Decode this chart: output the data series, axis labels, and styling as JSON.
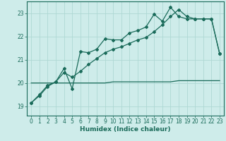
{
  "background_color": "#ceecea",
  "grid_color": "#aed8d4",
  "line_color": "#1a6b5a",
  "xlabel": "Humidex (Indice chaleur)",
  "xlim": [
    -0.5,
    23.5
  ],
  "ylim": [
    18.6,
    23.5
  ],
  "yticks": [
    19,
    20,
    21,
    22,
    23
  ],
  "xticks": [
    0,
    1,
    2,
    3,
    4,
    5,
    6,
    7,
    8,
    9,
    10,
    11,
    12,
    13,
    14,
    15,
    16,
    17,
    18,
    19,
    20,
    21,
    22,
    23
  ],
  "line1_x": [
    0,
    1,
    2,
    3,
    4,
    5,
    6,
    7,
    8,
    9,
    10,
    11,
    12,
    13,
    14,
    15,
    16,
    17,
    18,
    19,
    20,
    21,
    22,
    23
  ],
  "line1_y": [
    19.15,
    19.5,
    19.9,
    20.05,
    20.62,
    19.75,
    21.35,
    21.3,
    21.45,
    21.9,
    21.85,
    21.85,
    22.15,
    22.25,
    22.4,
    22.95,
    22.65,
    23.25,
    22.85,
    22.75,
    22.75,
    22.75,
    22.75,
    21.25
  ],
  "line2_x": [
    0,
    1,
    2,
    3,
    4,
    5,
    6,
    7,
    8,
    9,
    10,
    11,
    12,
    13,
    14,
    15,
    16,
    17,
    18,
    19,
    20,
    21,
    22,
    23
  ],
  "line2_y": [
    19.15,
    19.45,
    19.85,
    20.05,
    20.45,
    20.25,
    20.5,
    20.8,
    21.05,
    21.3,
    21.45,
    21.55,
    21.7,
    21.85,
    21.95,
    22.2,
    22.5,
    22.85,
    23.15,
    22.85,
    22.75,
    22.75,
    22.75,
    21.25
  ],
  "line3_x": [
    0,
    1,
    2,
    3,
    4,
    5,
    6,
    7,
    8,
    9,
    10,
    11,
    12,
    13,
    14,
    15,
    16,
    17,
    18,
    19,
    20,
    21,
    22,
    23
  ],
  "line3_y": [
    20.0,
    20.0,
    20.0,
    20.0,
    20.0,
    20.0,
    20.0,
    20.0,
    20.0,
    20.0,
    20.05,
    20.05,
    20.05,
    20.05,
    20.05,
    20.05,
    20.05,
    20.05,
    20.1,
    20.1,
    20.1,
    20.1,
    20.1,
    20.1
  ]
}
